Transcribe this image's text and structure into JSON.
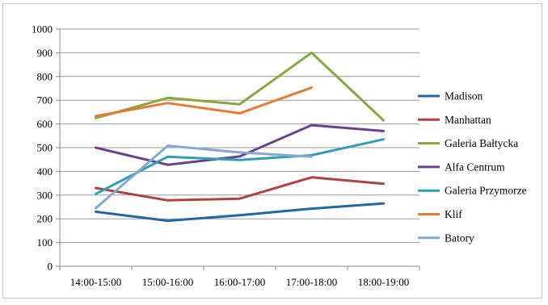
{
  "chart_data": {
    "type": "line",
    "title": "",
    "xlabel": "",
    "ylabel": "",
    "categories": [
      "14:00-15:00",
      "15:00-16:00",
      "16:00-17:00",
      "17:00-18:00",
      "18:00-19:00"
    ],
    "ylim": [
      0,
      1000
    ],
    "yticks": [
      0,
      100,
      200,
      300,
      400,
      500,
      600,
      700,
      800,
      900,
      1000
    ],
    "grid": true,
    "legend_position": "right",
    "series": [
      {
        "name": "Madison",
        "color": "#1f67a8",
        "values": [
          230,
          192,
          215,
          243,
          265
        ]
      },
      {
        "name": "Manhattan",
        "color": "#b0413e",
        "values": [
          330,
          278,
          285,
          375,
          348
        ]
      },
      {
        "name": "Galeria Bałtycka",
        "color": "#86a83c",
        "values": [
          625,
          710,
          683,
          900,
          615
        ]
      },
      {
        "name": "Alfa Centrum",
        "color": "#67438f",
        "values": [
          500,
          428,
          463,
          595,
          570
        ]
      },
      {
        "name": "Galeria Przymorze",
        "color": "#2f9fb4",
        "values": [
          305,
          462,
          448,
          468,
          535
        ]
      },
      {
        "name": "Klif",
        "color": "#e67b35",
        "values": [
          633,
          688,
          645,
          753,
          null
        ]
      },
      {
        "name": "Batory",
        "color": "#86a8d2",
        "values": [
          245,
          508,
          480,
          462,
          null
        ]
      }
    ]
  }
}
